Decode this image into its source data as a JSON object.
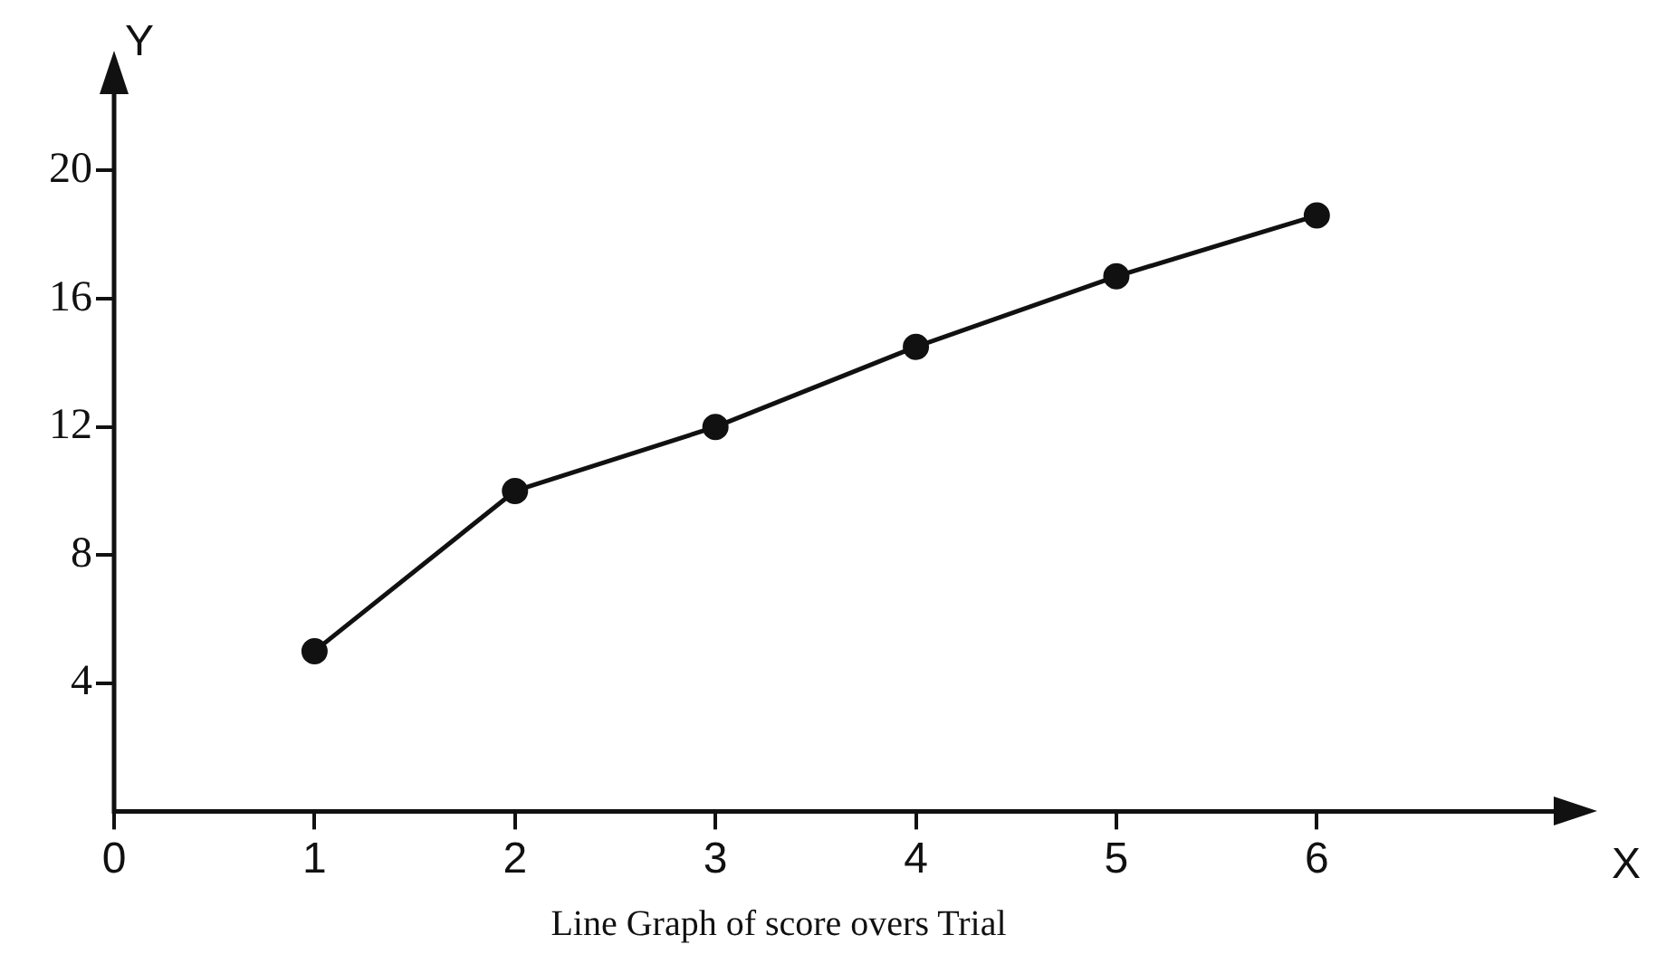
{
  "chart_data": {
    "type": "line",
    "title": "Line Graph of score overs Trial",
    "xlabel": "X",
    "ylabel": "Y",
    "x": [
      1,
      2,
      3,
      4,
      5,
      6
    ],
    "series": [
      {
        "color": "#111111",
        "values": [
          5,
          10,
          12,
          14.5,
          16.7,
          18.6
        ]
      }
    ],
    "xlim": [
      0,
      7.2
    ],
    "xticks": [
      0,
      1,
      2,
      3,
      4,
      5,
      6
    ],
    "ylim": [
      0,
      22.5
    ],
    "yticks": [
      4,
      8,
      12,
      16,
      20
    ],
    "grid": false,
    "legend": false,
    "marker": "circle",
    "line_style": "solid"
  }
}
